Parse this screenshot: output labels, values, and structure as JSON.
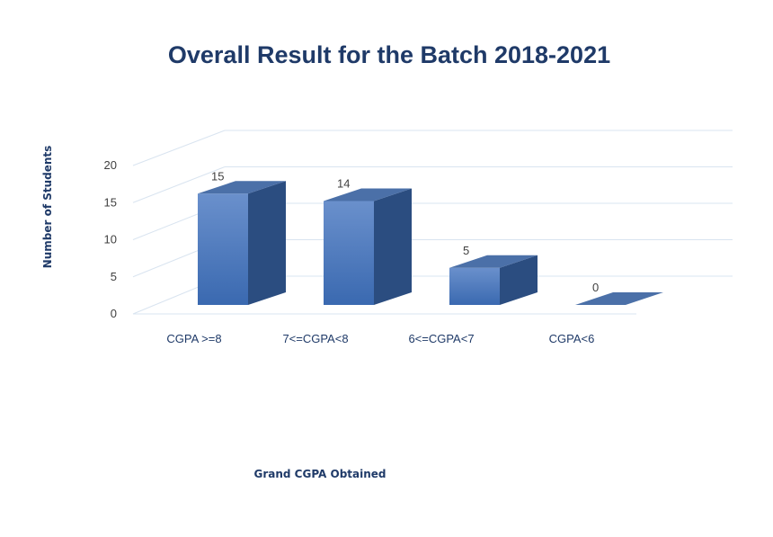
{
  "chart_data": {
    "type": "bar",
    "title": "Overall Result  for the Batch 2018-2021",
    "xlabel": "Grand CGPA Obtained",
    "ylabel": "Number of Students",
    "categories": [
      "CGPA >=8",
      "7<=CGPA<8",
      "6<=CGPA<7",
      "CGPA<6"
    ],
    "values": [
      15,
      14,
      5,
      0
    ],
    "yticks": [
      0,
      5,
      10,
      15,
      20
    ],
    "ylim": [
      0,
      20
    ],
    "grid": true,
    "style": "3d-column",
    "data_labels": true,
    "colors": {
      "front_top": "#6a90cc",
      "front_bottom": "#3a69b0",
      "side": "#2b4d80",
      "top": "#4b70a8",
      "text": "#1f3a68",
      "grid": "#d9e4f0"
    }
  }
}
